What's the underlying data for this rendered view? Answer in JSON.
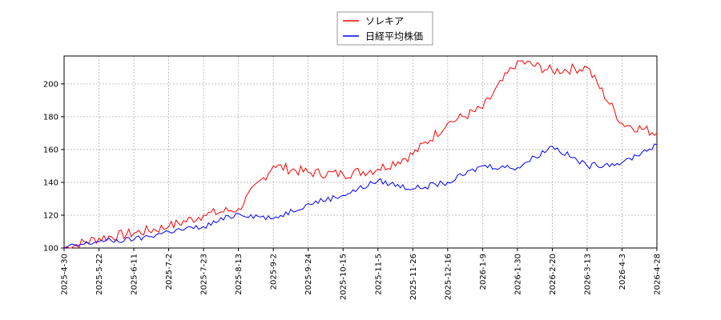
{
  "chart_data": {
    "type": "line",
    "title": "",
    "xlabel": "",
    "ylabel": "",
    "ylim": [
      100,
      217
    ],
    "y_ticks": [
      100,
      120,
      140,
      160,
      180,
      200
    ],
    "x_tick_labels": [
      "2025-4-30",
      "2025-5-22",
      "2025-6-11",
      "2025-7-2",
      "2025-7-23",
      "2025-8-13",
      "2025-9-2",
      "2025-9-24",
      "2025-10-15",
      "2025-11-5",
      "2025-11-26",
      "2025-12-16",
      "2026-1-9",
      "2026-1-30",
      "2026-2-20",
      "2026-3-13",
      "2026-4-3",
      "2026-4-28"
    ],
    "grid": true,
    "legend_position": "top-center",
    "x": [
      "2025-4-30",
      "2025-5-22",
      "2025-6-11",
      "2025-7-2",
      "2025-7-23",
      "2025-8-13",
      "2025-9-2",
      "2025-9-24",
      "2025-10-15",
      "2025-11-5",
      "2025-11-26",
      "2025-12-16",
      "2026-1-9",
      "2026-1-30",
      "2026-2-20",
      "2026-3-13",
      "2026-4-3",
      "2026-4-28"
    ],
    "series": [
      {
        "name": "ソレキア",
        "color": "#ff0000",
        "values": [
          100,
          106,
          109,
          113,
          120,
          124,
          150,
          146,
          145,
          148,
          157,
          176,
          185,
          214,
          208,
          210,
          176,
          170
        ]
      },
      {
        "name": "日経平均株価",
        "color": "#0000ff",
        "values": [
          100,
          104,
          105,
          110,
          113,
          121,
          118,
          127,
          132,
          141,
          136,
          140,
          150,
          149,
          162,
          150,
          152,
          163
        ]
      }
    ]
  }
}
